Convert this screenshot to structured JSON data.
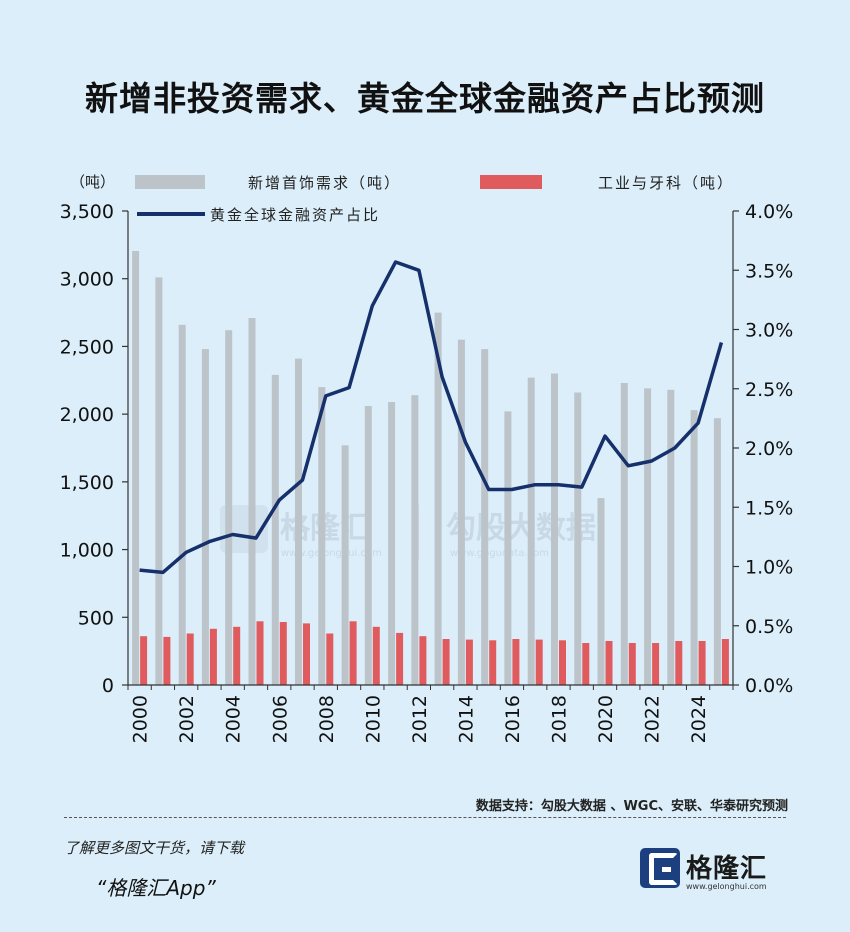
{
  "page": {
    "title": "新增非投资需求、黄金全球金融资产占比预测",
    "source": "数据支持：勾股大数据 、WGC、安联、华泰研究预测",
    "promo_line": "了解更多图文干货，请下载",
    "promo_app": "“格隆汇App”",
    "logo_text": "格隆汇",
    "logo_url": "www.gelonghui.com",
    "watermark_left": "格隆汇",
    "watermark_left_url": "www.gelonghui.com",
    "watermark_right": "勾股大数据",
    "watermark_right_url": "www.gogudata.com"
  },
  "chart_data": {
    "type": "bar",
    "categories": [
      2000,
      2001,
      2002,
      2003,
      2004,
      2005,
      2006,
      2007,
      2008,
      2009,
      2010,
      2011,
      2012,
      2013,
      2014,
      2015,
      2016,
      2017,
      2018,
      2019,
      2020,
      2021,
      2022,
      2023,
      2024,
      2025
    ],
    "series": [
      {
        "name": "新增首饰需求（吨）",
        "type": "bar",
        "axis": "left",
        "color": "#bcc4ca",
        "values": [
          3205,
          3010,
          2660,
          2480,
          2620,
          2710,
          2290,
          2410,
          2200,
          1770,
          2060,
          2090,
          2140,
          2750,
          2550,
          2480,
          2020,
          2270,
          2300,
          2160,
          1380,
          2230,
          2190,
          2180,
          2030,
          1970
        ]
      },
      {
        "name": "工业与牙科（吨）",
        "type": "bar",
        "axis": "left",
        "color": "#e05b5e",
        "values": [
          360,
          355,
          380,
          415,
          430,
          470,
          465,
          455,
          380,
          470,
          430,
          385,
          360,
          340,
          335,
          330,
          340,
          335,
          330,
          310,
          325,
          310,
          310,
          325,
          325,
          340
        ]
      },
      {
        "name": "黄金全球金融资产占比",
        "type": "line",
        "axis": "right",
        "color": "#16306b",
        "values": [
          0.97,
          0.95,
          1.12,
          1.21,
          1.27,
          1.24,
          1.56,
          1.73,
          2.44,
          2.51,
          3.2,
          3.57,
          3.5,
          2.6,
          2.05,
          1.65,
          1.65,
          1.69,
          1.69,
          1.67,
          2.1,
          1.85,
          1.89,
          2.0,
          2.21,
          2.89
        ]
      }
    ],
    "y_left": {
      "unit_label": "（吨）",
      "ticks": [
        "0",
        "500",
        "1,000",
        "1,500",
        "2,000",
        "2,500",
        "3,000",
        "3,500"
      ],
      "min": 0,
      "max": 3500
    },
    "y_right": {
      "ticks": [
        "0.0%",
        "0.5%",
        "1.0%",
        "1.5%",
        "2.0%",
        "2.5%",
        "3.0%",
        "3.5%",
        "4.0%"
      ],
      "min": 0,
      "max": 4.0
    },
    "x_tick_labels": [
      "2000",
      "2002",
      "2004",
      "2006",
      "2008",
      "2010",
      "2012",
      "2014",
      "2016",
      "2018",
      "2020",
      "2022",
      "2024"
    ],
    "legend": {
      "jewelry": "新增首饰需求（吨）",
      "industrial": "工业与牙科（吨）",
      "share": "黄金全球金融资产占比"
    }
  }
}
